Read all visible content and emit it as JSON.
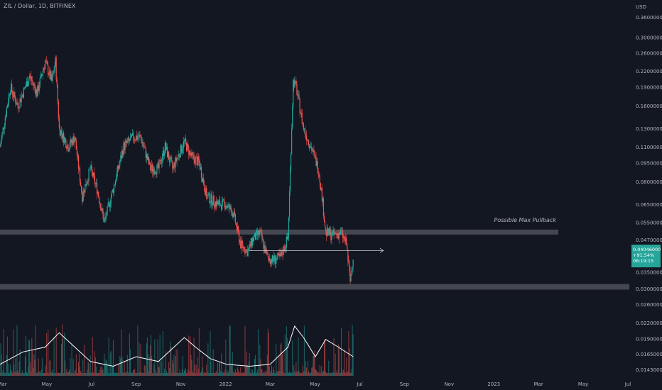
{
  "header": {
    "title": "ZIL / Dollar, 1D, BITFINEX"
  },
  "price_tag": {
    "price": "0.04046000",
    "change": "+91.54%",
    "countdown": "06:19:15"
  },
  "colors": {
    "background": "#131722",
    "up": "#26a69a",
    "down": "#ef5350",
    "zone": "#4a4d55",
    "text": "#b2b5be",
    "volume_ma": "#ffffff"
  },
  "chart_data": {
    "type": "candlestick",
    "symbol": "ZIL / Dollar",
    "timeframe": "1D",
    "exchange": "BITFINEX",
    "y_unit": "USD",
    "y_scale": "log",
    "ylim": [
      0.0135,
      0.4
    ],
    "y_ticks": [
      "0.36000000",
      "0.30000000",
      "0.26000000",
      "0.22000000",
      "0.19000000",
      "0.16000000",
      "0.13000000",
      "0.11000000",
      "0.09500000",
      "0.08000000",
      "0.06500000",
      "0.05500000",
      "0.04700000",
      "0.03500000",
      "0.03000000",
      "0.02600000",
      "0.02200000",
      "0.01900000",
      "0.01650000",
      "0.01430000"
    ],
    "x_ticks": [
      "Mar",
      "May",
      "Jul",
      "Sep",
      "Nov",
      "2022",
      "Mar",
      "May",
      "Jul",
      "Sep",
      "Nov",
      "2023",
      "Mar",
      "May",
      "Jul"
    ],
    "x_range": [
      "2021-03-01",
      "2023-07-01"
    ],
    "price_path": [
      [
        "2021-03-01",
        0.11
      ],
      [
        "2021-03-15",
        0.19
      ],
      [
        "2021-03-25",
        0.16
      ],
      [
        "2021-04-10",
        0.21
      ],
      [
        "2021-04-20",
        0.18
      ],
      [
        "2021-05-01",
        0.24
      ],
      [
        "2021-05-10",
        0.2
      ],
      [
        "2021-05-15",
        0.24
      ],
      [
        "2021-05-20",
        0.13
      ],
      [
        "2021-06-01",
        0.11
      ],
      [
        "2021-06-10",
        0.12
      ],
      [
        "2021-06-20",
        0.07
      ],
      [
        "2021-07-01",
        0.09
      ],
      [
        "2021-07-10",
        0.075
      ],
      [
        "2021-07-20",
        0.055
      ],
      [
        "2021-08-01",
        0.075
      ],
      [
        "2021-08-15",
        0.11
      ],
      [
        "2021-08-28",
        0.12
      ],
      [
        "2021-09-07",
        0.12
      ],
      [
        "2021-09-20",
        0.09
      ],
      [
        "2021-10-01",
        0.09
      ],
      [
        "2021-10-10",
        0.11
      ],
      [
        "2021-10-20",
        0.09
      ],
      [
        "2021-11-05",
        0.115
      ],
      [
        "2021-11-15",
        0.1
      ],
      [
        "2021-11-25",
        0.095
      ],
      [
        "2021-12-05",
        0.07
      ],
      [
        "2021-12-20",
        0.065
      ],
      [
        "2021-12-31",
        0.065
      ],
      [
        "2022-01-10",
        0.06
      ],
      [
        "2022-01-20",
        0.045
      ],
      [
        "2022-01-30",
        0.042
      ],
      [
        "2022-02-05",
        0.047
      ],
      [
        "2022-02-15",
        0.05
      ],
      [
        "2022-02-25",
        0.04
      ],
      [
        "2022-03-05",
        0.039
      ],
      [
        "2022-03-15",
        0.04
      ],
      [
        "2022-03-25",
        0.048
      ],
      [
        "2022-04-01",
        0.2
      ],
      [
        "2022-04-05",
        0.19
      ],
      [
        "2022-04-15",
        0.13
      ],
      [
        "2022-04-25",
        0.11
      ],
      [
        "2022-05-05",
        0.09
      ],
      [
        "2022-05-10",
        0.07
      ],
      [
        "2022-05-15",
        0.05
      ],
      [
        "2022-05-25",
        0.049
      ],
      [
        "2022-06-05",
        0.05
      ],
      [
        "2022-06-12",
        0.045
      ],
      [
        "2022-06-17",
        0.032
      ],
      [
        "2022-06-21",
        0.0405
      ]
    ],
    "volume_ma_path": [
      [
        "2021-03-01",
        0.12
      ],
      [
        "2021-04-01",
        0.25
      ],
      [
        "2021-05-01",
        0.3
      ],
      [
        "2021-05-20",
        0.45
      ],
      [
        "2021-06-10",
        0.3
      ],
      [
        "2021-07-01",
        0.15
      ],
      [
        "2021-08-01",
        0.1
      ],
      [
        "2021-09-01",
        0.2
      ],
      [
        "2021-10-01",
        0.15
      ],
      [
        "2021-11-05",
        0.4
      ],
      [
        "2021-11-20",
        0.3
      ],
      [
        "2021-12-10",
        0.18
      ],
      [
        "2022-01-01",
        0.12
      ],
      [
        "2022-02-01",
        0.1
      ],
      [
        "2022-03-01",
        0.12
      ],
      [
        "2022-03-25",
        0.3
      ],
      [
        "2022-04-03",
        0.52
      ],
      [
        "2022-04-15",
        0.4
      ],
      [
        "2022-05-01",
        0.2
      ],
      [
        "2022-05-15",
        0.38
      ],
      [
        "2022-06-01",
        0.3
      ],
      [
        "2022-06-21",
        0.2
      ]
    ],
    "support_zone_upper": {
      "level": 0.0505,
      "label": "Possible Max Pullback"
    },
    "support_zone_lower": {
      "level": 0.0305
    },
    "projection_arrow": {
      "level": 0.0425,
      "from": "2022-02-01",
      "to": "2022-08-01"
    },
    "last_price": 0.04046
  }
}
